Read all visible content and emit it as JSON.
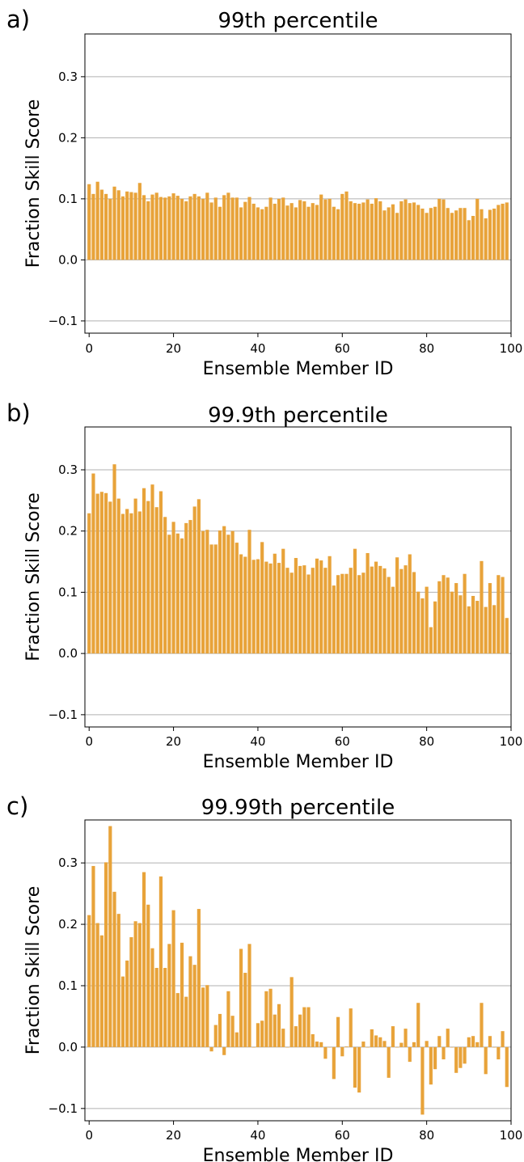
{
  "colors": {
    "bar": "#E8A33A",
    "grid": "#b0b0b0",
    "axis": "#000000"
  },
  "chart_data": [
    {
      "type": "bar",
      "panel": "a)",
      "title": "99th percentile",
      "xlabel": "Ensemble Member ID",
      "ylabel": "Fraction Skill Score",
      "xlim": [
        -1,
        100
      ],
      "ylim": [
        -0.12,
        0.37
      ],
      "xticks": [
        "0",
        "20",
        "40",
        "60",
        "80",
        "100"
      ],
      "yticks": [
        "−0.1",
        "0.0",
        "0.1",
        "0.2",
        "0.3"
      ],
      "grid": "horizontal",
      "x": [
        0,
        1,
        2,
        3,
        4,
        5,
        6,
        7,
        8,
        9,
        10,
        11,
        12,
        13,
        14,
        15,
        16,
        17,
        18,
        19,
        20,
        21,
        22,
        23,
        24,
        25,
        26,
        27,
        28,
        29,
        30,
        31,
        32,
        33,
        34,
        35,
        36,
        37,
        38,
        39,
        40,
        41,
        42,
        43,
        44,
        45,
        46,
        47,
        48,
        49,
        50,
        51,
        52,
        53,
        54,
        55,
        56,
        57,
        58,
        59,
        60,
        61,
        62,
        63,
        64,
        65,
        66,
        67,
        68,
        69,
        70,
        71,
        72,
        73,
        74,
        75,
        76,
        77,
        78,
        79,
        80,
        81,
        82,
        83,
        84,
        85,
        86,
        87,
        88,
        89,
        90,
        91,
        92,
        93,
        94,
        95,
        96,
        97,
        98,
        99
      ],
      "values": [
        0.124,
        0.108,
        0.128,
        0.115,
        0.108,
        0.1,
        0.12,
        0.114,
        0.104,
        0.112,
        0.111,
        0.11,
        0.126,
        0.106,
        0.096,
        0.107,
        0.11,
        0.103,
        0.102,
        0.104,
        0.109,
        0.105,
        0.1,
        0.096,
        0.104,
        0.108,
        0.104,
        0.1,
        0.11,
        0.094,
        0.102,
        0.087,
        0.106,
        0.11,
        0.102,
        0.102,
        0.086,
        0.095,
        0.103,
        0.092,
        0.086,
        0.083,
        0.087,
        0.102,
        0.092,
        0.1,
        0.102,
        0.089,
        0.093,
        0.086,
        0.098,
        0.096,
        0.087,
        0.093,
        0.09,
        0.107,
        0.099,
        0.1,
        0.087,
        0.083,
        0.108,
        0.112,
        0.096,
        0.093,
        0.092,
        0.094,
        0.099,
        0.092,
        0.101,
        0.096,
        0.081,
        0.086,
        0.091,
        0.077,
        0.096,
        0.099,
        0.093,
        0.094,
        0.09,
        0.084,
        0.077,
        0.085,
        0.087,
        0.1,
        0.099,
        0.085,
        0.077,
        0.081,
        0.085,
        0.085,
        0.065,
        0.072,
        0.1,
        0.083,
        0.068,
        0.082,
        0.084,
        0.09,
        0.092,
        0.094
      ]
    },
    {
      "type": "bar",
      "panel": "b)",
      "title": "99.9th percentile",
      "xlabel": "Ensemble Member ID",
      "ylabel": "Fraction Skill Score",
      "xlim": [
        -1,
        100
      ],
      "ylim": [
        -0.12,
        0.37
      ],
      "xticks": [
        "0",
        "20",
        "40",
        "60",
        "80",
        "100"
      ],
      "yticks": [
        "−0.1",
        "0.0",
        "0.1",
        "0.2",
        "0.3"
      ],
      "grid": "horizontal",
      "x": [
        0,
        1,
        2,
        3,
        4,
        5,
        6,
        7,
        8,
        9,
        10,
        11,
        12,
        13,
        14,
        15,
        16,
        17,
        18,
        19,
        20,
        21,
        22,
        23,
        24,
        25,
        26,
        27,
        28,
        29,
        30,
        31,
        32,
        33,
        34,
        35,
        36,
        37,
        38,
        39,
        40,
        41,
        42,
        43,
        44,
        45,
        46,
        47,
        48,
        49,
        50,
        51,
        52,
        53,
        54,
        55,
        56,
        57,
        58,
        59,
        60,
        61,
        62,
        63,
        64,
        65,
        66,
        67,
        68,
        69,
        70,
        71,
        72,
        73,
        74,
        75,
        76,
        77,
        78,
        79,
        80,
        81,
        82,
        83,
        84,
        85,
        86,
        87,
        88,
        89,
        90,
        91,
        92,
        93,
        94,
        95,
        96,
        97,
        98,
        99
      ],
      "values": [
        0.229,
        0.294,
        0.261,
        0.264,
        0.262,
        0.248,
        0.309,
        0.253,
        0.228,
        0.236,
        0.229,
        0.253,
        0.232,
        0.27,
        0.249,
        0.276,
        0.239,
        0.265,
        0.223,
        0.194,
        0.215,
        0.196,
        0.188,
        0.213,
        0.218,
        0.24,
        0.252,
        0.2,
        0.202,
        0.178,
        0.178,
        0.201,
        0.208,
        0.194,
        0.2,
        0.181,
        0.162,
        0.158,
        0.202,
        0.153,
        0.154,
        0.182,
        0.15,
        0.147,
        0.163,
        0.148,
        0.171,
        0.14,
        0.132,
        0.156,
        0.143,
        0.144,
        0.129,
        0.14,
        0.155,
        0.152,
        0.14,
        0.159,
        0.111,
        0.128,
        0.13,
        0.13,
        0.14,
        0.171,
        0.128,
        0.132,
        0.164,
        0.142,
        0.15,
        0.143,
        0.139,
        0.125,
        0.109,
        0.157,
        0.138,
        0.144,
        0.162,
        0.133,
        0.101,
        0.09,
        0.109,
        0.043,
        0.085,
        0.118,
        0.128,
        0.124,
        0.101,
        0.115,
        0.095,
        0.13,
        0.077,
        0.094,
        0.086,
        0.151,
        0.076,
        0.115,
        0.079,
        0.128,
        0.125,
        0.058
      ]
    },
    {
      "type": "bar",
      "panel": "c)",
      "title": "99.99th percentile",
      "xlabel": "Ensemble Member ID",
      "ylabel": "Fraction Skill Score",
      "xlim": [
        -1,
        100
      ],
      "ylim": [
        -0.12,
        0.37
      ],
      "xticks": [
        "0",
        "20",
        "40",
        "60",
        "80",
        "100"
      ],
      "yticks": [
        "−0.1",
        "0.0",
        "0.1",
        "0.2",
        "0.3"
      ],
      "grid": "horizontal",
      "x": [
        0,
        1,
        2,
        3,
        4,
        5,
        6,
        7,
        8,
        9,
        10,
        11,
        12,
        13,
        14,
        15,
        16,
        17,
        18,
        19,
        20,
        21,
        22,
        23,
        24,
        25,
        26,
        27,
        28,
        29,
        30,
        31,
        32,
        33,
        34,
        35,
        36,
        37,
        38,
        39,
        40,
        41,
        42,
        43,
        44,
        45,
        46,
        47,
        48,
        49,
        50,
        51,
        52,
        53,
        54,
        55,
        56,
        57,
        58,
        59,
        60,
        61,
        62,
        63,
        64,
        65,
        66,
        67,
        68,
        69,
        70,
        71,
        72,
        73,
        74,
        75,
        76,
        77,
        78,
        79,
        80,
        81,
        82,
        83,
        84,
        85,
        86,
        87,
        88,
        89,
        90,
        91,
        92,
        93,
        94,
        95,
        96,
        97,
        98,
        99
      ],
      "values": [
        0.215,
        0.295,
        0.202,
        0.182,
        0.301,
        0.36,
        0.253,
        0.217,
        0.115,
        0.141,
        0.179,
        0.205,
        0.202,
        0.285,
        0.232,
        0.161,
        0.129,
        0.278,
        0.129,
        0.168,
        0.223,
        0.088,
        0.17,
        0.082,
        0.148,
        0.134,
        0.225,
        0.097,
        0.101,
        -0.007,
        0.036,
        0.054,
        -0.013,
        0.091,
        0.051,
        0.024,
        0.16,
        0.121,
        0.168,
        0.0,
        0.039,
        0.043,
        0.091,
        0.095,
        0.053,
        0.07,
        0.03,
        0.0,
        0.114,
        0.034,
        0.053,
        0.065,
        0.065,
        0.021,
        0.009,
        0.008,
        -0.019,
        0.0,
        -0.052,
        0.049,
        -0.015,
        0.001,
        0.063,
        -0.066,
        -0.074,
        0.009,
        0.0,
        0.029,
        0.019,
        0.016,
        0.01,
        -0.05,
        0.034,
        0.0,
        0.007,
        0.03,
        -0.024,
        0.008,
        0.072,
        -0.11,
        0.01,
        -0.061,
        -0.036,
        0.018,
        -0.02,
        0.03,
        0.0,
        -0.042,
        -0.034,
        -0.027,
        0.016,
        0.018,
        0.008,
        0.072,
        -0.044,
        0.018,
        0.0,
        -0.02,
        0.026,
        -0.065
      ]
    }
  ]
}
